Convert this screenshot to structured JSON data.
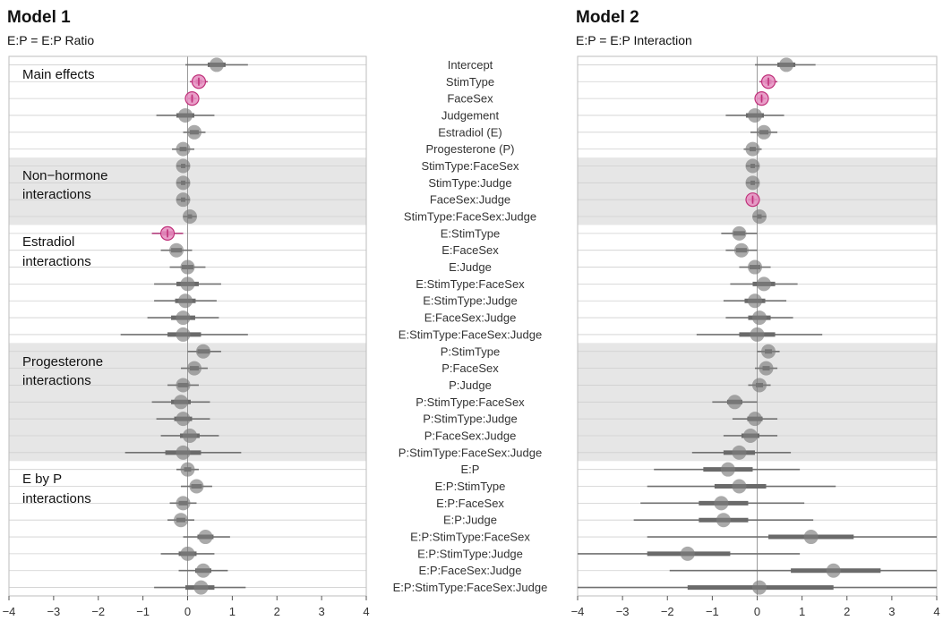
{
  "chart_data": [
    {
      "type": "forest",
      "title": "Model 1",
      "subtitle": "E:P = E:P Ratio",
      "xlim": [
        -4,
        4
      ],
      "x_ticks": [
        -4,
        -3,
        -2,
        -1,
        0,
        1,
        2,
        3,
        4
      ],
      "grid": true,
      "group_labels": [
        "Main effects",
        "Non−hormone\ninteractions",
        "Estradiol\ninteractions",
        "Progesterone\ninteractions",
        "E by P\ninteractions"
      ],
      "rows": [
        {
          "term": "Intercept",
          "est": 0.65,
          "lo95": -0.05,
          "hi95": 1.35,
          "lo50": 0.45,
          "hi50": 0.85,
          "sig": false
        },
        {
          "term": "StimType",
          "est": 0.25,
          "lo95": 0.05,
          "hi95": 0.45,
          "lo50": 0.18,
          "hi50": 0.32,
          "sig": true
        },
        {
          "term": "FaceSex",
          "est": 0.1,
          "lo95": 0.0,
          "hi95": 0.2,
          "lo50": 0.06,
          "hi50": 0.14,
          "sig": true
        },
        {
          "term": "Judgement",
          "est": -0.05,
          "lo95": -0.7,
          "hi95": 0.6,
          "lo50": -0.25,
          "hi50": 0.15,
          "sig": false
        },
        {
          "term": "Estradiol (E)",
          "est": 0.15,
          "lo95": -0.1,
          "hi95": 0.4,
          "lo50": 0.05,
          "hi50": 0.25,
          "sig": false
        },
        {
          "term": "Progesterone (P)",
          "est": -0.1,
          "lo95": -0.35,
          "hi95": 0.15,
          "lo50": -0.18,
          "hi50": -0.02,
          "sig": false
        },
        {
          "term": "StimType:FaceSex",
          "est": -0.1,
          "lo95": -0.25,
          "hi95": 0.05,
          "lo50": -0.15,
          "hi50": -0.05,
          "sig": false
        },
        {
          "term": "StimType:Judge",
          "est": -0.1,
          "lo95": -0.25,
          "hi95": 0.05,
          "lo50": -0.15,
          "hi50": -0.05,
          "sig": false
        },
        {
          "term": "FaceSex:Judge",
          "est": -0.1,
          "lo95": -0.25,
          "hi95": 0.05,
          "lo50": -0.15,
          "hi50": -0.05,
          "sig": false
        },
        {
          "term": "StimType:FaceSex:Judge",
          "est": 0.05,
          "lo95": -0.1,
          "hi95": 0.2,
          "lo50": 0.0,
          "hi50": 0.1,
          "sig": false
        },
        {
          "term": "E:StimType",
          "est": -0.45,
          "lo95": -0.8,
          "hi95": -0.1,
          "lo50": -0.57,
          "hi50": -0.33,
          "sig": true
        },
        {
          "term": "E:FaceSex",
          "est": -0.25,
          "lo95": -0.6,
          "hi95": 0.1,
          "lo50": -0.37,
          "hi50": -0.13,
          "sig": false
        },
        {
          "term": "E:Judge",
          "est": 0.0,
          "lo95": -0.4,
          "hi95": 0.4,
          "lo50": -0.13,
          "hi50": 0.13,
          "sig": false
        },
        {
          "term": "E:StimType:FaceSex",
          "est": 0.0,
          "lo95": -0.75,
          "hi95": 0.75,
          "lo50": -0.25,
          "hi50": 0.25,
          "sig": false
        },
        {
          "term": "E:StimType:Judge",
          "est": -0.05,
          "lo95": -0.75,
          "hi95": 0.65,
          "lo50": -0.28,
          "hi50": 0.18,
          "sig": false
        },
        {
          "term": "E:FaceSex:Judge",
          "est": -0.1,
          "lo95": -0.9,
          "hi95": 0.7,
          "lo50": -0.37,
          "hi50": 0.17,
          "sig": false
        },
        {
          "term": "E:StimType:FaceSex:Judge",
          "est": -0.1,
          "lo95": -1.5,
          "hi95": 1.35,
          "lo50": -0.45,
          "hi50": 0.3,
          "sig": false
        },
        {
          "term": "P:StimType",
          "est": 0.35,
          "lo95": 0.0,
          "hi95": 0.75,
          "lo50": 0.22,
          "hi50": 0.5,
          "sig": false
        },
        {
          "term": "P:FaceSex",
          "est": 0.15,
          "lo95": -0.15,
          "hi95": 0.45,
          "lo50": 0.05,
          "hi50": 0.25,
          "sig": false
        },
        {
          "term": "P:Judge",
          "est": -0.1,
          "lo95": -0.45,
          "hi95": 0.25,
          "lo50": -0.22,
          "hi50": 0.02,
          "sig": false
        },
        {
          "term": "P:StimType:FaceSex",
          "est": -0.15,
          "lo95": -0.8,
          "hi95": 0.5,
          "lo50": -0.37,
          "hi50": 0.07,
          "sig": false
        },
        {
          "term": "P:StimType:Judge",
          "est": -0.1,
          "lo95": -0.7,
          "hi95": 0.5,
          "lo50": -0.3,
          "hi50": 0.1,
          "sig": false
        },
        {
          "term": "P:FaceSex:Judge",
          "est": 0.05,
          "lo95": -0.6,
          "hi95": 0.7,
          "lo50": -0.17,
          "hi50": 0.27,
          "sig": false
        },
        {
          "term": "P:StimType:FaceSex:Judge",
          "est": -0.1,
          "lo95": -1.4,
          "hi95": 1.2,
          "lo50": -0.5,
          "hi50": 0.3,
          "sig": false
        },
        {
          "term": "E:P",
          "est": 0.0,
          "lo95": -0.25,
          "hi95": 0.25,
          "lo50": -0.08,
          "hi50": 0.08,
          "sig": false
        },
        {
          "term": "E:P:StimType",
          "est": 0.2,
          "lo95": -0.15,
          "hi95": 0.55,
          "lo50": 0.08,
          "hi50": 0.32,
          "sig": false
        },
        {
          "term": "E:P:FaceSex",
          "est": -0.1,
          "lo95": -0.4,
          "hi95": 0.2,
          "lo50": -0.2,
          "hi50": 0.0,
          "sig": false
        },
        {
          "term": "E:P:Judge",
          "est": -0.15,
          "lo95": -0.45,
          "hi95": 0.15,
          "lo50": -0.25,
          "hi50": -0.05,
          "sig": false
        },
        {
          "term": "E:P:StimType:FaceSex",
          "est": 0.4,
          "lo95": -0.1,
          "hi95": 0.95,
          "lo50": 0.22,
          "hi50": 0.58,
          "sig": false
        },
        {
          "term": "E:P:StimType:Judge",
          "est": 0.0,
          "lo95": -0.6,
          "hi95": 0.6,
          "lo50": -0.2,
          "hi50": 0.2,
          "sig": false
        },
        {
          "term": "E:P:FaceSex:Judge",
          "est": 0.35,
          "lo95": -0.2,
          "hi95": 0.9,
          "lo50": 0.17,
          "hi50": 0.53,
          "sig": false
        },
        {
          "term": "E:P:StimType:FaceSex:Judge",
          "est": 0.3,
          "lo95": -0.75,
          "hi95": 1.3,
          "lo50": -0.05,
          "hi50": 0.6,
          "sig": false
        }
      ]
    },
    {
      "type": "forest",
      "title": "Model 2",
      "subtitle": "E:P = E:P Interaction",
      "xlim": [
        -4,
        4
      ],
      "x_ticks": [
        -4,
        -3,
        -2,
        -1,
        0,
        1,
        2,
        3,
        4
      ],
      "grid": true,
      "rows": [
        {
          "term": "Intercept",
          "est": 0.65,
          "lo95": -0.05,
          "hi95": 1.3,
          "lo50": 0.45,
          "hi50": 0.85,
          "sig": false
        },
        {
          "term": "StimType",
          "est": 0.25,
          "lo95": 0.05,
          "hi95": 0.45,
          "lo50": 0.18,
          "hi50": 0.32,
          "sig": true
        },
        {
          "term": "FaceSex",
          "est": 0.1,
          "lo95": 0.0,
          "hi95": 0.2,
          "lo50": 0.06,
          "hi50": 0.14,
          "sig": true
        },
        {
          "term": "Judgement",
          "est": -0.05,
          "lo95": -0.7,
          "hi95": 0.6,
          "lo50": -0.25,
          "hi50": 0.15,
          "sig": false
        },
        {
          "term": "Estradiol (E)",
          "est": 0.15,
          "lo95": -0.15,
          "hi95": 0.45,
          "lo50": 0.05,
          "hi50": 0.25,
          "sig": false
        },
        {
          "term": "Progesterone (P)",
          "est": -0.1,
          "lo95": -0.3,
          "hi95": 0.1,
          "lo50": -0.17,
          "hi50": -0.03,
          "sig": false
        },
        {
          "term": "StimType:FaceSex",
          "est": -0.1,
          "lo95": -0.25,
          "hi95": 0.05,
          "lo50": -0.15,
          "hi50": -0.05,
          "sig": false
        },
        {
          "term": "StimType:Judge",
          "est": -0.1,
          "lo95": -0.25,
          "hi95": 0.05,
          "lo50": -0.15,
          "hi50": -0.05,
          "sig": false
        },
        {
          "term": "FaceSex:Judge",
          "est": -0.1,
          "lo95": -0.2,
          "hi95": 0.0,
          "lo50": -0.14,
          "hi50": -0.06,
          "sig": true
        },
        {
          "term": "StimType:FaceSex:Judge",
          "est": 0.05,
          "lo95": -0.1,
          "hi95": 0.2,
          "lo50": 0.0,
          "hi50": 0.1,
          "sig": false
        },
        {
          "term": "E:StimType",
          "est": -0.4,
          "lo95": -0.8,
          "hi95": 0.0,
          "lo50": -0.53,
          "hi50": -0.27,
          "sig": false
        },
        {
          "term": "E:FaceSex",
          "est": -0.35,
          "lo95": -0.7,
          "hi95": 0.0,
          "lo50": -0.47,
          "hi50": -0.23,
          "sig": false
        },
        {
          "term": "E:Judge",
          "est": -0.05,
          "lo95": -0.4,
          "hi95": 0.3,
          "lo50": -0.17,
          "hi50": 0.07,
          "sig": false
        },
        {
          "term": "E:StimType:FaceSex",
          "est": 0.15,
          "lo95": -0.6,
          "hi95": 0.9,
          "lo50": -0.1,
          "hi50": 0.4,
          "sig": false
        },
        {
          "term": "E:StimType:Judge",
          "est": -0.05,
          "lo95": -0.75,
          "hi95": 0.65,
          "lo50": -0.28,
          "hi50": 0.18,
          "sig": false
        },
        {
          "term": "E:FaceSex:Judge",
          "est": 0.05,
          "lo95": -0.7,
          "hi95": 0.8,
          "lo50": -0.2,
          "hi50": 0.3,
          "sig": false
        },
        {
          "term": "E:StimType:FaceSex:Judge",
          "est": 0.0,
          "lo95": -1.35,
          "hi95": 1.45,
          "lo50": -0.4,
          "hi50": 0.4,
          "sig": false
        },
        {
          "term": "P:StimType",
          "est": 0.25,
          "lo95": 0.0,
          "hi95": 0.5,
          "lo50": 0.17,
          "hi50": 0.33,
          "sig": false
        },
        {
          "term": "P:FaceSex",
          "est": 0.2,
          "lo95": -0.05,
          "hi95": 0.45,
          "lo50": 0.12,
          "hi50": 0.28,
          "sig": false
        },
        {
          "term": "P:Judge",
          "est": 0.05,
          "lo95": -0.2,
          "hi95": 0.3,
          "lo50": -0.03,
          "hi50": 0.13,
          "sig": false
        },
        {
          "term": "P:StimType:FaceSex",
          "est": -0.5,
          "lo95": -1.0,
          "hi95": 0.0,
          "lo50": -0.67,
          "hi50": -0.33,
          "sig": false
        },
        {
          "term": "P:StimType:Judge",
          "est": -0.05,
          "lo95": -0.55,
          "hi95": 0.45,
          "lo50": -0.22,
          "hi50": 0.12,
          "sig": false
        },
        {
          "term": "P:FaceSex:Judge",
          "est": -0.15,
          "lo95": -0.75,
          "hi95": 0.45,
          "lo50": -0.35,
          "hi50": 0.05,
          "sig": false
        },
        {
          "term": "P:StimType:FaceSex:Judge",
          "est": -0.4,
          "lo95": -1.45,
          "hi95": 0.75,
          "lo50": -0.75,
          "hi50": -0.05,
          "sig": false
        },
        {
          "term": "E:P",
          "est": -0.65,
          "lo95": -2.3,
          "hi95": 0.95,
          "lo50": -1.2,
          "hi50": -0.1,
          "sig": false
        },
        {
          "term": "E:P:StimType",
          "est": -0.4,
          "lo95": -2.45,
          "hi95": 1.75,
          "lo50": -0.95,
          "hi50": 0.2,
          "sig": false
        },
        {
          "term": "E:P:FaceSex",
          "est": -0.8,
          "lo95": -2.6,
          "hi95": 1.05,
          "lo50": -1.3,
          "hi50": -0.2,
          "sig": false
        },
        {
          "term": "E:P:Judge",
          "est": -0.75,
          "lo95": -2.75,
          "hi95": 1.25,
          "lo50": -1.3,
          "hi50": -0.2,
          "sig": false
        },
        {
          "term": "E:P:StimType:FaceSex",
          "est": 1.2,
          "lo95": -2.45,
          "hi95": 4.0,
          "lo50": 0.25,
          "hi50": 2.15,
          "sig": false
        },
        {
          "term": "E:P:StimType:Judge",
          "est": -1.55,
          "lo95": -4.0,
          "hi95": 0.95,
          "lo50": -2.45,
          "hi50": -0.6,
          "sig": false
        },
        {
          "term": "E:P:FaceSex:Judge",
          "est": 1.7,
          "lo95": -1.95,
          "hi95": 4.0,
          "lo50": 0.75,
          "hi50": 2.75,
          "sig": false
        },
        {
          "term": "E:P:StimType:FaceSex:Judge",
          "est": 0.05,
          "lo95": -4.0,
          "hi95": 4.0,
          "lo50": -1.55,
          "hi50": 1.7,
          "sig": false
        }
      ]
    }
  ]
}
